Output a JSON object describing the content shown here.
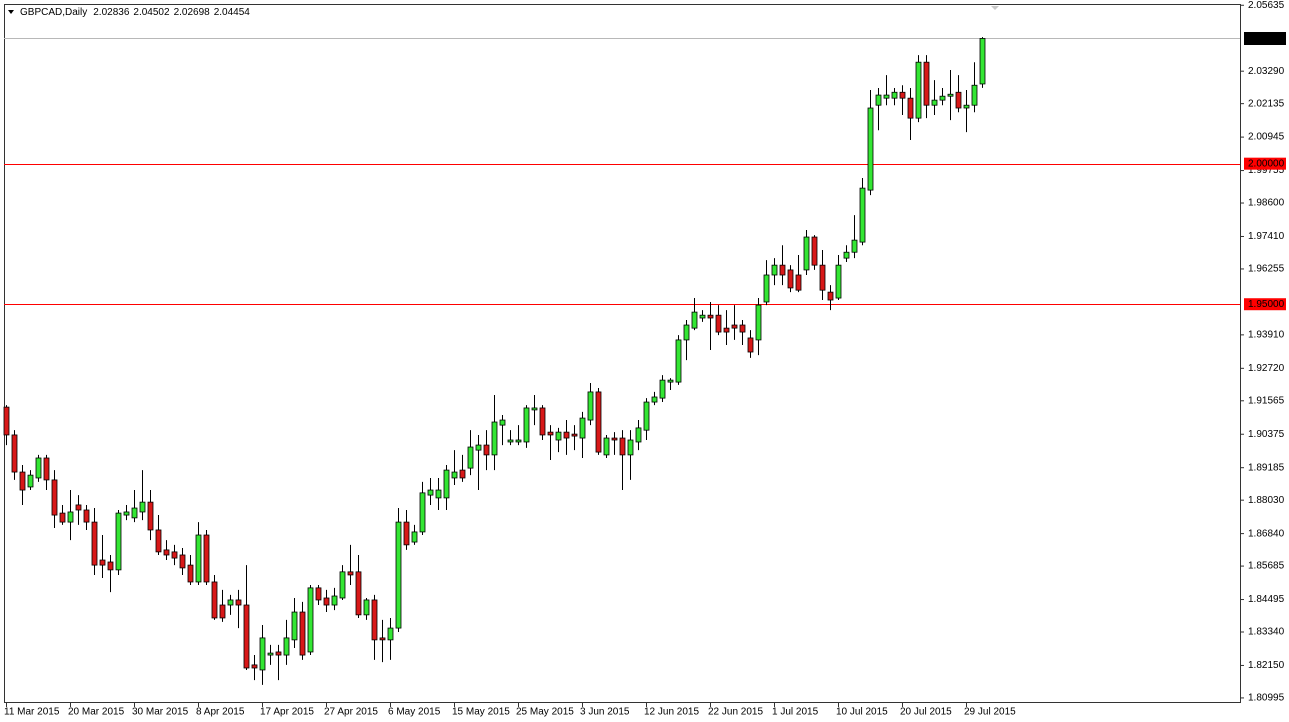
{
  "chart_data": {
    "type": "candlestick",
    "title": "GBPCAD,Daily",
    "categories": [
      "11 Mar 2015",
      null,
      null,
      null,
      null,
      null,
      null,
      null,
      "20 Mar 2015",
      null,
      null,
      null,
      null,
      null,
      null,
      null,
      "30 Mar 2015",
      null,
      null,
      null,
      null,
      null,
      null,
      null,
      "8 Apr 2015",
      null,
      null,
      null,
      null,
      null,
      null,
      null,
      "17 Apr 2015",
      null,
      null,
      null,
      null,
      null,
      null,
      null,
      "27 Apr 2015",
      null,
      null,
      null,
      null,
      null,
      null,
      null,
      "6 May 2015",
      null,
      null,
      null,
      null,
      null,
      null,
      null,
      "15 May 2015",
      null,
      null,
      null,
      null,
      null,
      null,
      null,
      "25 May 2015",
      null,
      null,
      null,
      null,
      null,
      null,
      null,
      "3 Jun 2015",
      null,
      null,
      null,
      null,
      null,
      null,
      null,
      "12 Jun 2015",
      null,
      null,
      null,
      null,
      null,
      null,
      null,
      "22 Jun 2015",
      null,
      null,
      null,
      null,
      null,
      null,
      null,
      "1 Jul 2015",
      null,
      null,
      null,
      null,
      null,
      null,
      null,
      "10 Jul 2015",
      null,
      null,
      null,
      null,
      null,
      null,
      null,
      "20 Jul 2015",
      null,
      null,
      null,
      null,
      null,
      null,
      null,
      "29 Jul 2015",
      null,
      null
    ],
    "open": [
      1.9134,
      1.9035,
      1.8903,
      1.885,
      1.8882,
      1.8953,
      1.8875,
      1.8757,
      1.8725,
      1.8786,
      1.8768,
      1.8725,
      1.859,
      1.8583,
      1.8555,
      1.875,
      1.874,
      1.8761,
      1.8796,
      1.8697,
      1.8626,
      1.8619,
      1.8608,
      1.8572,
      1.8512,
      1.8679,
      1.8512,
      1.843,
      1.843,
      1.8448,
      1.843,
      1.8217,
      1.8199,
      1.8252,
      1.8263,
      1.8252,
      1.8306,
      1.8405,
      1.8263,
      1.8491,
      1.8455,
      1.843,
      1.8455,
      1.8548,
      1.8548,
      1.8395,
      1.8448,
      1.8313,
      1.8306,
      1.8348,
      1.8725,
      1.8654,
      1.869,
      1.8821,
      1.8811,
      1.8811,
      1.8882,
      1.891,
      1.8917,
      1.8981,
      1.8999,
      1.8964,
      1.907,
      1.901,
      1.901,
      1.901,
      1.9124,
      1.9131,
      1.9045,
      1.9017,
      1.9045,
      1.9038,
      1.9024,
      1.9088,
      1.9188,
      1.8964,
      1.9024,
      1.9024,
      1.8964,
      1.901,
      1.9052,
      1.9152,
      1.9166,
      1.9223,
      1.9223,
      1.9373,
      1.9415,
      1.9451,
      1.9461,
      1.9461,
      1.9415,
      1.9426,
      1.9426,
      1.938,
      1.9373,
      1.9508,
      1.9604,
      1.9639,
      1.9622,
      1.9604,
      1.9622,
      1.9739,
      1.9639,
      1.9543,
      1.9522,
      1.9664,
      1.9685,
      1.9721,
      1.9906,
      2.0208,
      2.0233,
      2.0233,
      2.0254,
      2.0233,
      2.0162,
      2.0361,
      2.0208,
      2.0226,
      2.024,
      2.0254,
      2.0198,
      2.0208,
      2.02836
    ],
    "high": [
      1.9141,
      1.9052,
      1.8928,
      1.891,
      1.8964,
      1.8964,
      1.891,
      1.8786,
      1.8839,
      1.8821,
      1.8786,
      1.8775,
      1.8679,
      1.8608,
      1.8768,
      1.8786,
      1.8839,
      1.891,
      1.8839,
      1.875,
      1.8661,
      1.8644,
      1.8633,
      1.8608,
      1.8725,
      1.8697,
      1.8537,
      1.8484,
      1.8466,
      1.8484,
      1.8572,
      1.8252,
      1.8359,
      1.8288,
      1.8288,
      1.8377,
      1.8455,
      1.8441,
      1.8501,
      1.8501,
      1.8484,
      1.8491,
      1.8572,
      1.8644,
      1.8608,
      1.8455,
      1.8466,
      1.8377,
      1.8384,
      1.8775,
      1.8768,
      1.8715,
      1.8868,
      1.8882,
      1.8882,
      1.8928,
      1.8981,
      1.8964,
      1.9052,
      1.9035,
      1.9052,
      1.9177,
      1.9106,
      1.9052,
      1.907,
      1.9141,
      1.9177,
      1.9141,
      1.907,
      1.906,
      1.9088,
      1.907,
      1.9117,
      1.922,
      1.9202,
      1.9035,
      1.9045,
      1.9052,
      1.9052,
      1.9088,
      1.9166,
      1.9188,
      1.9248,
      1.9237,
      1.939,
      1.9444,
      1.9522,
      1.9479,
      1.9508,
      1.9497,
      1.9479,
      1.9497,
      1.9444,
      1.9408,
      1.9522,
      1.9657,
      1.9664,
      1.971,
      1.9639,
      1.9675,
      1.9764,
      1.9746,
      1.9693,
      1.9568,
      1.9675,
      1.971,
      1.9817,
      1.9949,
      2.0262,
      2.0269,
      2.0315,
      2.0269,
      2.0279,
      2.0269,
      2.0386,
      2.0386,
      2.0297,
      2.0269,
      2.0333,
      2.0315,
      2.0262,
      2.0361,
      2.04502
    ],
    "low": [
      1.8999,
      1.8875,
      1.8786,
      1.8839,
      1.8868,
      1.8839,
      1.8704,
      1.8715,
      1.8661,
      1.8715,
      1.8697,
      1.8537,
      1.8526,
      1.8476,
      1.8537,
      1.8732,
      1.8725,
      1.8732,
      1.8661,
      1.8608,
      1.859,
      1.8572,
      1.8537,
      1.8501,
      1.8501,
      1.8501,
      1.8377,
      1.837,
      1.8395,
      1.8348,
      1.8199,
      1.8163,
      1.8146,
      1.8217,
      1.8163,
      1.8217,
      1.8277,
      1.8235,
      1.8252,
      1.843,
      1.8405,
      1.8412,
      1.8448,
      1.8501,
      1.8384,
      1.8377,
      1.8235,
      1.8227,
      1.8235,
      1.8334,
      1.8626,
      1.8644,
      1.8679,
      1.8786,
      1.8768,
      1.8768,
      1.8857,
      1.8868,
      1.8892,
      1.8839,
      1.891,
      1.891,
      1.8999,
      1.8999,
      1.8999,
      1.8989,
      1.907,
      1.9017,
      1.8946,
      1.8974,
      1.8964,
      1.8981,
      1.8953,
      1.907,
      1.8964,
      1.8953,
      1.8964,
      1.8839,
      1.8875,
      1.8981,
      1.9017,
      1.9141,
      1.9152,
      1.9195,
      1.9213,
      1.9301,
      1.9408,
      1.9437,
      1.9337,
      1.939,
      1.9355,
      1.9373,
      1.9355,
      1.9309,
      1.9319,
      1.9497,
      1.9568,
      1.9568,
      1.9543,
      1.9543,
      1.9604,
      1.9622,
      1.9515,
      1.9479,
      1.9515,
      1.965,
      1.9664,
      1.971,
      1.9888,
      2.0119,
      2.0208,
      2.0208,
      2.0173,
      2.0084,
      2.0148,
      2.0162,
      2.0173,
      2.0208,
      2.0155,
      2.0183,
      2.0112,
      2.0183,
      2.02698
    ],
    "close": [
      1.9035,
      1.8903,
      1.8839,
      1.8892,
      1.8953,
      1.8875,
      1.875,
      1.8725,
      1.8761,
      1.8768,
      1.8725,
      1.8572,
      1.8572,
      1.8555,
      1.8757,
      1.8761,
      1.8775,
      1.8796,
      1.8697,
      1.8619,
      1.8608,
      1.8597,
      1.8562,
      1.8512,
      1.8679,
      1.8512,
      1.8384,
      1.8384,
      1.8448,
      1.843,
      1.8206,
      1.8206,
      1.8313,
      1.8259,
      1.8252,
      1.8313,
      1.8405,
      1.8252,
      1.8491,
      1.8448,
      1.843,
      1.8462,
      1.8548,
      1.8537,
      1.8395,
      1.8448,
      1.8306,
      1.8306,
      1.8348,
      1.8725,
      1.8644,
      1.869,
      1.8829,
      1.8839,
      1.8839,
      1.891,
      1.8903,
      1.8882,
      1.8992,
      1.8999,
      1.8964,
      1.9081,
      1.9088,
      1.9017,
      1.9017,
      1.9131,
      1.9131,
      1.9035,
      1.9035,
      1.9045,
      1.9024,
      1.9031,
      1.9095,
      1.9188,
      1.8974,
      1.9024,
      1.9017,
      1.8964,
      1.9017,
      1.906,
      1.9152,
      1.917,
      1.923,
      1.923,
      1.9373,
      1.9426,
      1.9472,
      1.9461,
      1.9451,
      1.9401,
      1.9401,
      1.9415,
      1.9401,
      1.933,
      1.9497,
      1.9604,
      1.9639,
      1.9604,
      1.9558,
      1.955,
      1.9739,
      1.9639,
      1.955,
      1.9515,
      1.9639,
      1.9685,
      1.9728,
      1.9913,
      2.0198,
      2.0244,
      2.0244,
      2.0254,
      2.0233,
      2.0162,
      2.0361,
      2.0208,
      2.0226,
      2.024,
      2.0247,
      2.0198,
      2.0208,
      2.0279,
      2.04454
    ],
    "up_color": "#33e633",
    "down_color": "#d81818",
    "ylim": [
      1.8085,
      2.0568
    ],
    "yticks": [
      2.05635,
      {
        "value": 2.0329,
        "label": "2.03290"
      },
      2.02135,
      2.00945,
      1.99755,
      {
        "value": 1.986,
        "label": "1.98600"
      },
      {
        "value": 1.9741,
        "label": "1.97410"
      },
      1.96255,
      {
        "value": 1.9391,
        "label": "1.93910"
      },
      {
        "value": 1.9272,
        "label": "1.92720"
      },
      1.91565,
      1.90375,
      1.89185,
      {
        "value": 1.8803,
        "label": "1.88030"
      },
      {
        "value": 1.8684,
        "label": "1.86840"
      },
      1.85685,
      1.84495,
      {
        "value": 1.8334,
        "label": "1.83340"
      },
      {
        "value": 1.8215,
        "label": "1.82150"
      },
      1.80995
    ],
    "levels": [
      {
        "value": 2,
        "label": "2.00000"
      },
      {
        "value": 1.95,
        "label": "1.95000"
      }
    ],
    "level_color": "#ff0000",
    "price_line_color": "#b8b8b8"
  }
}
